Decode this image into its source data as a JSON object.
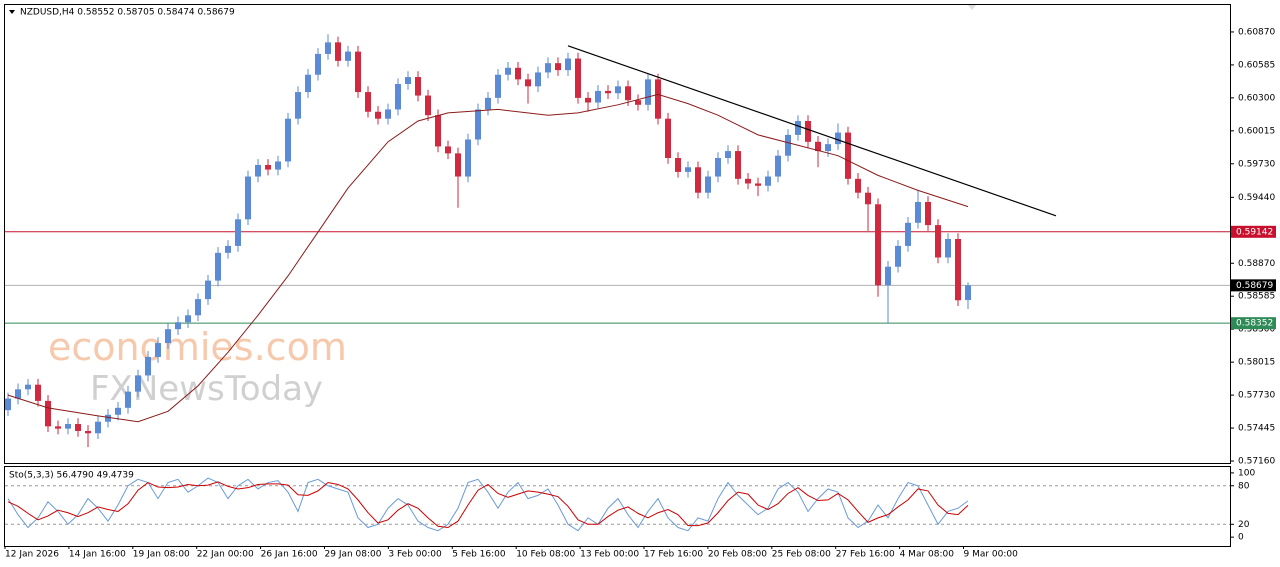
{
  "chart_data": {
    "type": "candlestick",
    "title": "NZDUSD,H4  0.58552 0.58705 0.58474 0.58679",
    "xlim": [
      -0.3,
      122.2
    ],
    "ylim": [
      0.57143,
      0.61103
    ],
    "yticks": [
      {
        "value": 0.6087,
        "label": "0.60870"
      },
      0.60585,
      {
        "value": 0.603,
        "label": "0.60300"
      },
      0.60015,
      {
        "value": 0.5973,
        "label": "0.59730"
      },
      {
        "value": 0.5944,
        "label": "0.59440"
      },
      {
        "value": 0.5887,
        "label": "0.58870"
      },
      0.58585,
      {
        "value": 0.583,
        "label": "0.58300"
      },
      0.58015,
      {
        "value": 0.5773,
        "label": "0.57730"
      },
      0.57445,
      {
        "value": 0.5716,
        "label": "0.57160"
      }
    ],
    "up_color": "#5b8bd6",
    "down_color": "#d1293f",
    "ohlc": [
      [
        0.576,
        0.5775,
        0.5755,
        0.577
      ],
      [
        0.577,
        0.5783,
        0.5765,
        0.5778
      ],
      [
        0.5778,
        0.5787,
        0.5773,
        0.5782
      ],
      [
        0.5782,
        0.5787,
        0.5763,
        0.5768
      ],
      [
        0.5768,
        0.5773,
        0.5741,
        0.5746
      ],
      [
        0.5746,
        0.5751,
        0.5739,
        0.5744
      ],
      [
        0.5744,
        0.5753,
        0.5739,
        0.5748
      ],
      [
        0.5748,
        0.5753,
        0.5737,
        0.5742
      ],
      [
        0.5742,
        0.5747,
        0.5728,
        0.574
      ],
      [
        0.574,
        0.5755,
        0.5735,
        0.575
      ],
      [
        0.575,
        0.5761,
        0.5745,
        0.5756
      ],
      [
        0.5756,
        0.5767,
        0.5751,
        0.5762
      ],
      [
        0.5762,
        0.5781,
        0.5757,
        0.5776
      ],
      [
        0.5776,
        0.5795,
        0.5771,
        0.579
      ],
      [
        0.579,
        0.5811,
        0.5785,
        0.5806
      ],
      [
        0.5806,
        0.5823,
        0.5801,
        0.5818
      ],
      [
        0.5818,
        0.5835,
        0.5813,
        0.583
      ],
      [
        0.583,
        0.5841,
        0.5825,
        0.5836
      ],
      [
        0.5836,
        0.5847,
        0.5831,
        0.5842
      ],
      [
        0.5842,
        0.5861,
        0.5837,
        0.5856
      ],
      [
        0.5856,
        0.5877,
        0.5851,
        0.5872
      ],
      [
        0.5872,
        0.5901,
        0.5867,
        0.5896
      ],
      [
        0.5896,
        0.5907,
        0.5891,
        0.5902
      ],
      [
        0.5902,
        0.593,
        0.5897,
        0.5925
      ],
      [
        0.5925,
        0.5967,
        0.592,
        0.5962
      ],
      [
        0.5962,
        0.5977,
        0.5957,
        0.5972
      ],
      [
        0.5972,
        0.5977,
        0.5963,
        0.5968
      ],
      [
        0.5968,
        0.598,
        0.5963,
        0.5975
      ],
      [
        0.5975,
        0.6017,
        0.597,
        0.6012
      ],
      [
        0.6012,
        0.604,
        0.6007,
        0.6035
      ],
      [
        0.6035,
        0.6055,
        0.603,
        0.605
      ],
      [
        0.605,
        0.6073,
        0.6045,
        0.6068
      ],
      [
        0.6068,
        0.6085,
        0.6063,
        0.6078
      ],
      [
        0.6078,
        0.6083,
        0.6057,
        0.6062
      ],
      [
        0.6062,
        0.6075,
        0.6057,
        0.607
      ],
      [
        0.607,
        0.6075,
        0.603,
        0.6035
      ],
      [
        0.6035,
        0.604,
        0.6013,
        0.6018
      ],
      [
        0.6018,
        0.6023,
        0.6007,
        0.6012
      ],
      [
        0.6012,
        0.6025,
        0.6007,
        0.602
      ],
      [
        0.602,
        0.6047,
        0.6015,
        0.6042
      ],
      [
        0.6042,
        0.6053,
        0.6037,
        0.6048
      ],
      [
        0.6048,
        0.6053,
        0.6027,
        0.6032
      ],
      [
        0.6032,
        0.6037,
        0.601,
        0.6015
      ],
      [
        0.6015,
        0.602,
        0.5983,
        0.5988
      ],
      [
        0.5988,
        0.5993,
        0.5977,
        0.5982
      ],
      [
        0.5982,
        0.5987,
        0.5935,
        0.5962
      ],
      [
        0.5962,
        0.5999,
        0.5957,
        0.5994
      ],
      [
        0.5994,
        0.6025,
        0.5989,
        0.602
      ],
      [
        0.602,
        0.6035,
        0.6015,
        0.603
      ],
      [
        0.603,
        0.6055,
        0.6025,
        0.605
      ],
      [
        0.605,
        0.6061,
        0.6045,
        0.6056
      ],
      [
        0.6056,
        0.6061,
        0.6041,
        0.6046
      ],
      [
        0.6046,
        0.6051,
        0.6025,
        0.604
      ],
      [
        0.604,
        0.6057,
        0.6035,
        0.6052
      ],
      [
        0.6052,
        0.6065,
        0.6047,
        0.606
      ],
      [
        0.606,
        0.6065,
        0.6049,
        0.6054
      ],
      [
        0.6054,
        0.6069,
        0.6049,
        0.6064
      ],
      [
        0.6064,
        0.6069,
        0.6025,
        0.603
      ],
      [
        0.603,
        0.6035,
        0.6018,
        0.6026
      ],
      [
        0.6026,
        0.6041,
        0.6021,
        0.6036
      ],
      [
        0.6036,
        0.6041,
        0.6029,
        0.6034
      ],
      [
        0.6034,
        0.6045,
        0.6029,
        0.604
      ],
      [
        0.604,
        0.6045,
        0.6023,
        0.6028
      ],
      [
        0.6028,
        0.6033,
        0.6019,
        0.6024
      ],
      [
        0.6024,
        0.6051,
        0.6019,
        0.6046
      ],
      [
        0.6046,
        0.6051,
        0.6007,
        0.6012
      ],
      [
        0.6012,
        0.6017,
        0.5973,
        0.5978
      ],
      [
        0.5978,
        0.5983,
        0.5961,
        0.5966
      ],
      [
        0.5966,
        0.5975,
        0.5961,
        0.597
      ],
      [
        0.597,
        0.5975,
        0.5943,
        0.5948
      ],
      [
        0.5948,
        0.5967,
        0.5943,
        0.5962
      ],
      [
        0.5962,
        0.5983,
        0.5957,
        0.5978
      ],
      [
        0.5978,
        0.5989,
        0.5973,
        0.5984
      ],
      [
        0.5984,
        0.5989,
        0.5955,
        0.596
      ],
      [
        0.596,
        0.5965,
        0.5951,
        0.5956
      ],
      [
        0.5956,
        0.5961,
        0.5945,
        0.5954
      ],
      [
        0.5954,
        0.5967,
        0.5949,
        0.5962
      ],
      [
        0.5962,
        0.5985,
        0.5957,
        0.598
      ],
      [
        0.598,
        0.6003,
        0.5975,
        0.5998
      ],
      [
        0.5998,
        0.6015,
        0.5993,
        0.601
      ],
      [
        0.601,
        0.6015,
        0.5987,
        0.5992
      ],
      [
        0.5992,
        0.5997,
        0.597,
        0.5984
      ],
      [
        0.5984,
        0.5995,
        0.5979,
        0.599
      ],
      [
        0.599,
        0.6008,
        0.5985,
        0.6
      ],
      [
        0.6,
        0.6005,
        0.5955,
        0.596
      ],
      [
        0.596,
        0.5965,
        0.5943,
        0.5948
      ],
      [
        0.5948,
        0.5953,
        0.5915,
        0.5938
      ],
      [
        0.5938,
        0.5943,
        0.5858,
        0.5868
      ],
      [
        0.5868,
        0.5889,
        0.5835,
        0.5884
      ],
      [
        0.5884,
        0.5907,
        0.5879,
        0.5902
      ],
      [
        0.5902,
        0.5927,
        0.5897,
        0.5922
      ],
      [
        0.5922,
        0.595,
        0.5917,
        0.594
      ],
      [
        0.594,
        0.5945,
        0.5915,
        0.592
      ],
      [
        0.592,
        0.5925,
        0.5887,
        0.5892
      ],
      [
        0.5892,
        0.5913,
        0.5887,
        0.5908
      ],
      [
        0.5908,
        0.5913,
        0.585,
        0.5855
      ],
      [
        0.58552,
        0.58705,
        0.58474,
        0.58679
      ]
    ],
    "ma": {
      "color": "#8b1a1a",
      "x": [
        0,
        4,
        9,
        13,
        16,
        19,
        22,
        25,
        28,
        31,
        34,
        38,
        41,
        44,
        49,
        54,
        57,
        61,
        65,
        68,
        71,
        75,
        79,
        83,
        87,
        91,
        96
      ],
      "values": [
        0.5773,
        0.5762,
        0.5755,
        0.575,
        0.5759,
        0.5781,
        0.581,
        0.5842,
        0.5876,
        0.5914,
        0.5952,
        0.5992,
        0.601,
        0.6017,
        0.602,
        0.6015,
        0.6017,
        0.6024,
        0.6033,
        0.6025,
        0.6015,
        0.5998,
        0.5989,
        0.598,
        0.5963,
        0.595,
        0.5936
      ]
    },
    "trendline": {
      "color": "#000000",
      "x": [
        56,
        104.8
      ],
      "values": [
        0.6075,
        0.5928
      ]
    },
    "levels": [
      {
        "value": 0.59142,
        "color": "#c8102e",
        "label_color": "#c8102e"
      },
      {
        "value": 0.58679,
        "color": "#b0b0b0",
        "label_color": "#000000"
      },
      {
        "value": 0.58352,
        "color": "#2e8b57",
        "label_color": "#2e8b57"
      }
    ],
    "x_labels": [
      "12 Jan 2026",
      "14 Jan 16:00",
      "19 Jan 08:00",
      "22 Jan 00:00",
      "26 Jan 16:00",
      "29 Jan 08:00",
      "3 Feb 00:00",
      "5 Feb 16:00",
      "10 Feb 08:00",
      "13 Feb 00:00",
      "17 Feb 16:00",
      "20 Feb 08:00",
      "25 Feb 08:00",
      "27 Feb 16:00",
      "4 Mar 08:00",
      "9 Mar 00:00"
    ],
    "watermark": [
      "economies.com",
      "FXNewsToday"
    ],
    "stochastic": {
      "label": "Sto(5,3,3) 56.4790 49.4739",
      "ylim": [
        -13.8,
        109.2
      ],
      "yticks": [
        0,
        20,
        80,
        100
      ],
      "dashed": [
        20,
        80
      ],
      "k_color": "#6a9ad8",
      "d_color": "#cc0000",
      "k": [
        60,
        35,
        15,
        30,
        55,
        40,
        20,
        35,
        60,
        45,
        25,
        50,
        80,
        90,
        85,
        60,
        85,
        90,
        70,
        80,
        92,
        85,
        60,
        80,
        90,
        75,
        85,
        88,
        70,
        40,
        85,
        90,
        80,
        75,
        70,
        30,
        15,
        20,
        45,
        60,
        50,
        25,
        15,
        10,
        20,
        45,
        85,
        90,
        70,
        45,
        70,
        85,
        60,
        65,
        75,
        50,
        20,
        10,
        30,
        20,
        45,
        60,
        35,
        15,
        40,
        60,
        30,
        15,
        10,
        30,
        25,
        60,
        85,
        65,
        50,
        35,
        45,
        75,
        85,
        70,
        40,
        60,
        75,
        70,
        30,
        15,
        25,
        50,
        30,
        60,
        85,
        80,
        50,
        20,
        40,
        45,
        56.479
      ],
      "d": [
        55,
        48,
        37,
        27,
        33,
        42,
        38,
        32,
        38,
        47,
        43,
        40,
        52,
        73,
        85,
        78,
        77,
        78,
        82,
        80,
        81,
        86,
        79,
        75,
        77,
        82,
        83,
        83,
        81,
        66,
        65,
        72,
        85,
        82,
        75,
        58,
        38,
        22,
        27,
        42,
        52,
        45,
        30,
        17,
        15,
        25,
        50,
        73,
        82,
        68,
        62,
        67,
        72,
        70,
        67,
        63,
        48,
        27,
        20,
        20,
        32,
        42,
        47,
        37,
        30,
        38,
        43,
        35,
        18,
        18,
        22,
        38,
        57,
        70,
        67,
        50,
        43,
        52,
        68,
        77,
        65,
        57,
        58,
        68,
        58,
        40,
        23,
        30,
        35,
        47,
        58,
        75,
        72,
        50,
        37,
        35,
        49.4739
      ]
    }
  }
}
